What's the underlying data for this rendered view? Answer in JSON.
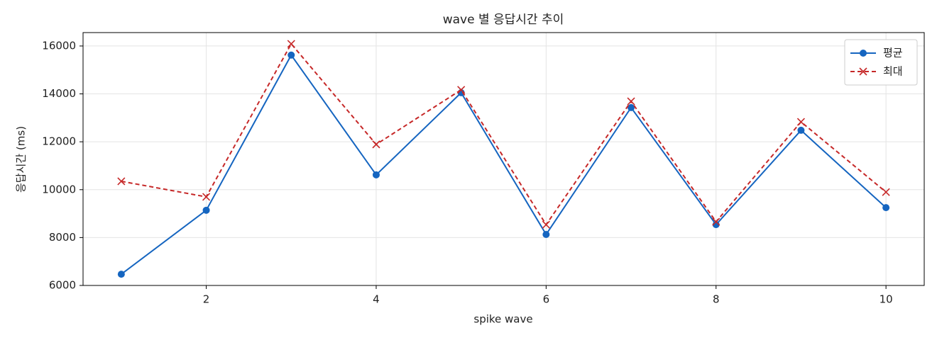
{
  "chart_data": {
    "type": "line",
    "title": "wave 별 응답시간 추이",
    "xlabel": "spike wave",
    "ylabel": "응답시간 (ms)",
    "x": [
      1,
      2,
      3,
      4,
      5,
      6,
      7,
      8,
      9,
      10
    ],
    "series": [
      {
        "name": "평균",
        "color": "#1565c0",
        "marker": "o",
        "linestyle": "solid",
        "values": [
          6470,
          9140,
          15620,
          10620,
          14050,
          8130,
          13430,
          8540,
          12480,
          9250
        ]
      },
      {
        "name": "최대",
        "color": "#c62828",
        "marker": "x",
        "linestyle": "dashed",
        "values": [
          10350,
          9700,
          16090,
          11890,
          14170,
          8540,
          13690,
          8660,
          12830,
          9900
        ]
      }
    ],
    "xlim": [
      0.55,
      10.45
    ],
    "xticks": [
      2,
      4,
      6,
      8,
      10
    ],
    "ylim": [
      6000,
      16560
    ],
    "yticks": [
      6000,
      8000,
      10000,
      12000,
      14000,
      16000
    ],
    "grid": true,
    "legend": "upper right"
  }
}
